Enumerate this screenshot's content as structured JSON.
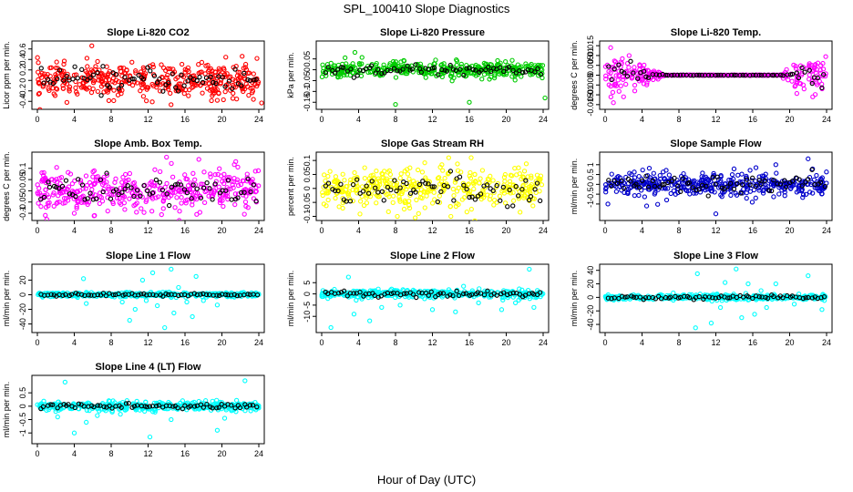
{
  "title": "SPL_100410  Slope Diagnostics",
  "xlabel": "Hour of Day (UTC)",
  "chart_data": [
    {
      "type": "scatter",
      "title": "Slope Li-820 CO2",
      "ylabel": "Licor ppm per min.",
      "xlim": [
        0,
        24
      ],
      "ylim": [
        -0.5,
        0.7
      ],
      "yticks": [
        -0.4,
        -0.2,
        0,
        0.2,
        0.4,
        0.6
      ],
      "xticks": [
        0,
        4,
        8,
        12,
        16,
        20,
        24
      ],
      "color": "#ff0000",
      "spread": 0.16,
      "n_main": 400,
      "n_ref": 70,
      "outliers": [
        [
          5.9,
          0.66
        ],
        [
          3.2,
          -0.42
        ],
        [
          19.5,
          -0.38
        ],
        [
          23.8,
          0.42
        ],
        [
          24.3,
          -0.43
        ]
      ]
    },
    {
      "type": "scatter",
      "title": "Slope Li-820 Pressure",
      "ylabel": "kPa per min.",
      "xlim": [
        0,
        24
      ],
      "ylim": [
        -0.17,
        0.12
      ],
      "yticks": [
        -0.15,
        -0.1,
        -0.05,
        0,
        0.05
      ],
      "xticks": [
        0,
        4,
        8,
        12,
        16,
        20,
        24
      ],
      "color": "#00cc00",
      "spread": 0.018,
      "n_main": 400,
      "n_ref": 70,
      "outliers": [
        [
          8,
          -0.16
        ],
        [
          16,
          -0.15
        ],
        [
          24.2,
          -0.13
        ],
        [
          3.6,
          0.08
        ]
      ]
    },
    {
      "type": "scatter",
      "title": "Slope Li-820 Temp.",
      "ylabel": "degrees C per min.",
      "xlim": [
        0,
        24
      ],
      "ylim": [
        -0.016,
        0.016
      ],
      "yticks": [
        -0.015,
        -0.01,
        -0.005,
        0,
        0.005,
        0.01,
        0.015
      ],
      "xticks": [
        0,
        4,
        8,
        12,
        16,
        20,
        24
      ],
      "color": "#ff00ff",
      "spread": 0.004,
      "n_main": 400,
      "n_ref": 70,
      "mode": "temp",
      "outliers": [
        [
          0.6,
          0.014
        ],
        [
          0.9,
          -0.014
        ],
        [
          2,
          -0.011
        ],
        [
          22.5,
          -0.011
        ],
        [
          23.6,
          0.006
        ]
      ]
    },
    {
      "type": "scatter",
      "title": "Slope Amb. Box Temp.",
      "ylabel": "degrees C per min.",
      "xlim": [
        0,
        24
      ],
      "ylim": [
        -0.12,
        0.16
      ],
      "yticks": [
        -0.1,
        -0.05,
        0,
        0.05,
        0.1
      ],
      "xticks": [
        0,
        4,
        8,
        12,
        16,
        20,
        24
      ],
      "color": "#ff00ff",
      "spread": 0.045,
      "n_main": 400,
      "n_ref": 70,
      "outliers": [
        [
          14,
          0.15
        ],
        [
          17.5,
          0.14
        ],
        [
          4,
          -0.1
        ],
        [
          6.2,
          -0.11
        ],
        [
          21.5,
          0.13
        ]
      ]
    },
    {
      "type": "scatter",
      "title": "Slope Gas Stream RH",
      "ylabel": "percent per min.",
      "xlim": [
        0,
        24
      ],
      "ylim": [
        -0.105,
        0.12
      ],
      "yticks": [
        -0.1,
        -0.05,
        0,
        0.05,
        0.1
      ],
      "xticks": [
        0,
        4,
        8,
        12,
        16,
        20,
        24
      ],
      "color": "#ffff00",
      "spread": 0.035,
      "n_main": 400,
      "n_ref": 70,
      "outliers": [
        [
          8.2,
          -0.1
        ],
        [
          10.5,
          -0.09
        ],
        [
          16.2,
          0.11
        ],
        [
          21.5,
          -0.085
        ],
        [
          14,
          -0.1
        ]
      ]
    },
    {
      "type": "scatter",
      "title": "Slope Sample Flow",
      "ylabel": "ml/min per min.",
      "xlim": [
        0,
        24
      ],
      "ylim": [
        -1.7,
        1.5
      ],
      "yticks": [
        -1,
        -0.5,
        0,
        0.5,
        1
      ],
      "xticks": [
        0,
        4,
        8,
        12,
        16,
        20,
        24
      ],
      "color": "#0000cc",
      "spread": 0.3,
      "n_main": 400,
      "n_ref": 70,
      "outliers": [
        [
          12,
          -1.5
        ],
        [
          22,
          1.3
        ],
        [
          4.5,
          -1.1
        ],
        [
          18.5,
          1.0
        ],
        [
          0.3,
          -1.0
        ]
      ]
    },
    {
      "type": "scatter",
      "title": "Slope Line 1 Flow",
      "ylabel": "ml/min per min.",
      "xlim": [
        0,
        24
      ],
      "ylim": [
        -48,
        38
      ],
      "yticks": [
        -40,
        -20,
        0,
        20
      ],
      "xticks": [
        0,
        4,
        8,
        12,
        16,
        20,
        24
      ],
      "color": "#00ffff",
      "spread": 1.5,
      "n_main": 400,
      "n_ref": 70,
      "outliers": [
        [
          5,
          22
        ],
        [
          5.3,
          -12
        ],
        [
          10,
          -35
        ],
        [
          10.6,
          -20
        ],
        [
          11.4,
          20
        ],
        [
          12.5,
          30
        ],
        [
          13,
          -15
        ],
        [
          13.8,
          -45
        ],
        [
          14.5,
          35
        ],
        [
          14.8,
          -25
        ],
        [
          15.3,
          10
        ],
        [
          16.2,
          -10
        ],
        [
          16.8,
          -30
        ],
        [
          17.2,
          25
        ],
        [
          18,
          -8
        ],
        [
          9.2,
          -10
        ],
        [
          11.8,
          -8
        ],
        [
          19.5,
          -14
        ]
      ]
    },
    {
      "type": "scatter",
      "title": "Slope Line 2 Flow",
      "ylabel": "ml/min per min.",
      "xlim": [
        0,
        24
      ],
      "ylim": [
        -16,
        12
      ],
      "yticks": [
        -10,
        -5,
        0,
        5
      ],
      "xticks": [
        0,
        4,
        8,
        12,
        16,
        20,
        24
      ],
      "color": "#00ffff",
      "spread": 0.9,
      "n_main": 400,
      "n_ref": 70,
      "outliers": [
        [
          2.9,
          7.5
        ],
        [
          22.5,
          11
        ],
        [
          1,
          -15
        ],
        [
          5.2,
          -12
        ],
        [
          3.5,
          -9
        ],
        [
          8.5,
          -5
        ],
        [
          12,
          -7
        ],
        [
          14.5,
          -8
        ],
        [
          17,
          -4
        ],
        [
          19.5,
          -7
        ],
        [
          21,
          -4
        ],
        [
          23,
          -6
        ],
        [
          6.5,
          -6
        ]
      ]
    },
    {
      "type": "scatter",
      "title": "Slope Line 3 Flow",
      "ylabel": "ml/min per min.",
      "xlim": [
        0,
        24
      ],
      "ylim": [
        -48,
        45
      ],
      "yticks": [
        -40,
        -20,
        0,
        20,
        40
      ],
      "xticks": [
        0,
        4,
        8,
        12,
        16,
        20,
        24
      ],
      "color": "#00ffff",
      "spread": 2,
      "n_main": 400,
      "n_ref": 70,
      "outliers": [
        [
          10,
          35
        ],
        [
          9.8,
          -45
        ],
        [
          11.5,
          -38
        ],
        [
          12.5,
          -15
        ],
        [
          13,
          22
        ],
        [
          14.2,
          42
        ],
        [
          14.8,
          -30
        ],
        [
          15.5,
          20
        ],
        [
          16.2,
          -25
        ],
        [
          16.9,
          10
        ],
        [
          17.5,
          -15
        ],
        [
          18.5,
          20
        ],
        [
          21,
          5
        ],
        [
          22,
          32
        ],
        [
          23.5,
          -18
        ],
        [
          20.5,
          -10
        ]
      ]
    },
    {
      "type": "scatter",
      "title": "Slope Line 4 (LT) Flow",
      "ylabel": "ml/min per min.",
      "xlim": [
        0,
        24
      ],
      "ylim": [
        -1.3,
        1.05
      ],
      "yticks": [
        -1,
        -0.5,
        0,
        0.5
      ],
      "xticks": [
        0,
        4,
        8,
        12,
        16,
        20,
        24
      ],
      "color": "#00ffff",
      "spread": 0.08,
      "n_main": 400,
      "n_ref": 70,
      "outliers": [
        [
          3,
          0.9
        ],
        [
          12.2,
          -1.15
        ],
        [
          4,
          -1.0
        ],
        [
          22.5,
          0.95
        ],
        [
          2.2,
          -0.4
        ],
        [
          5.3,
          -0.6
        ],
        [
          19.5,
          -0.9
        ],
        [
          9,
          -0.3
        ],
        [
          14.5,
          -0.5
        ],
        [
          6.5,
          -0.35
        ],
        [
          20.3,
          -0.45
        ]
      ]
    }
  ]
}
